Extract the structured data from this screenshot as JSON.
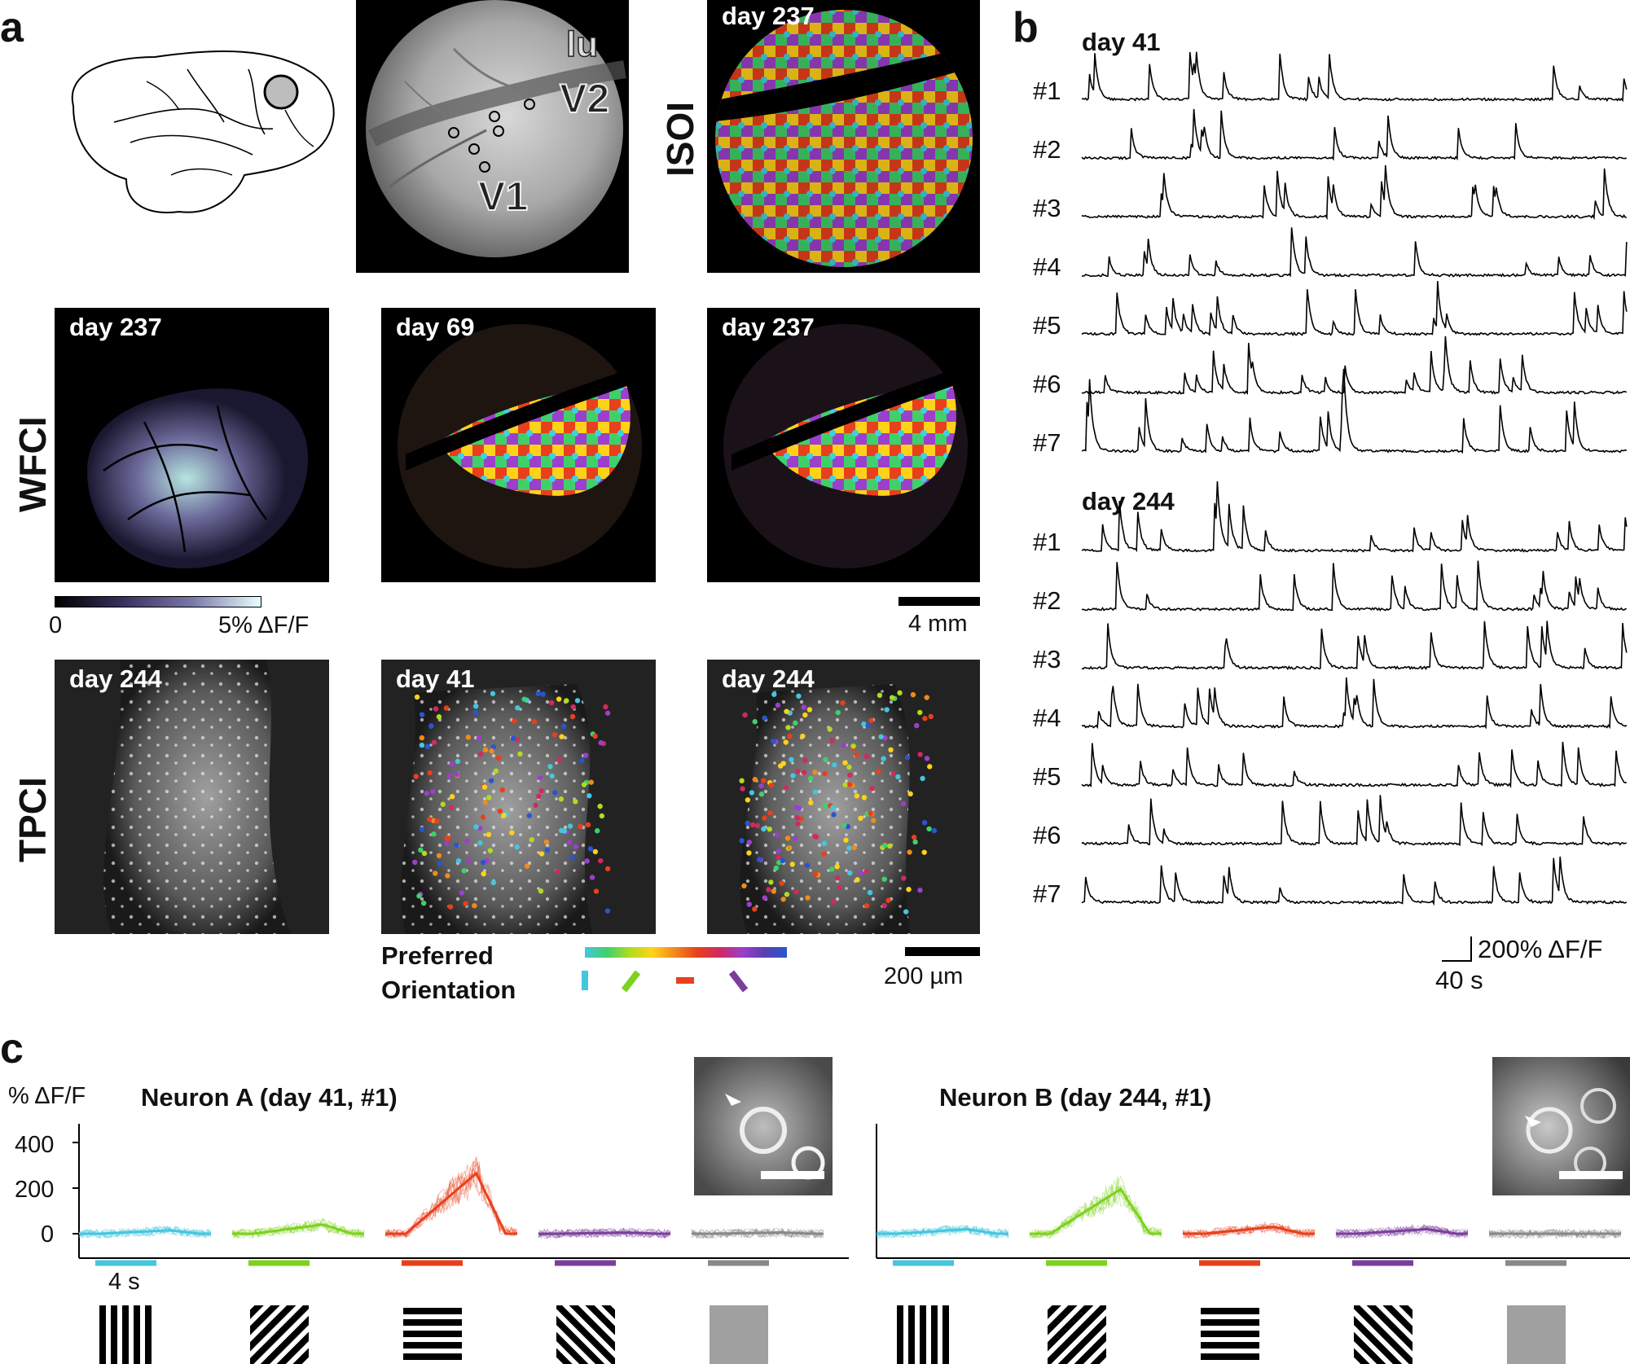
{
  "panels": {
    "a": "a",
    "b": "b",
    "c": "c"
  },
  "panel_a": {
    "window_labels": {
      "lu": "lu",
      "v2": "V2",
      "v1": "V1"
    },
    "row_labels": {
      "isoi": "ISOI",
      "wfci": "WFCI",
      "tpci": "TPCI"
    },
    "isoi_day": "day 237",
    "wfci_days": [
      "day 237",
      "day 69",
      "day 237"
    ],
    "tpci_days": [
      "day 244",
      "day 41",
      "day 244"
    ],
    "colorbar": {
      "min": "0",
      "max": "5% ΔF/F"
    },
    "scalebar_wfci": "4 mm",
    "scalebar_tpci": "200 µm",
    "orientation_label": [
      "Preferred",
      "Orientation"
    ],
    "colors": {
      "cyan": "#45c6dc",
      "green": "#7cd21e",
      "red": "#e8401c",
      "purple": "#7a3f9c",
      "gray": "#888888"
    }
  },
  "panel_b": {
    "day1": "day 41",
    "day2": "day 244",
    "neurons": [
      "#1",
      "#2",
      "#3",
      "#4",
      "#5",
      "#6",
      "#7"
    ],
    "scale_y": "200% ΔF/F",
    "scale_x": "40 s"
  },
  "panel_c": {
    "ylabel": "% ΔF/F",
    "yticks": [
      "400",
      "200",
      "0"
    ],
    "neuron_a_title": "Neuron A (day 41, #1)",
    "neuron_b_title": "Neuron B (day 244, #1)",
    "time_scale": "4 s",
    "chart_data": [
      {
        "type": "line",
        "title": "Neuron A (day 41, #1)",
        "ylabel": "% ΔF/F",
        "ylim": [
          -80,
          480
        ],
        "conditions": [
          "vertical",
          "diagonal-right",
          "horizontal",
          "diagonal-left",
          "blank"
        ],
        "peak_values": [
          15,
          40,
          265,
          5,
          5
        ]
      },
      {
        "type": "line",
        "title": "Neuron B (day 244, #1)",
        "ylabel": "% ΔF/F",
        "ylim": [
          -80,
          480
        ],
        "conditions": [
          "vertical",
          "diagonal-right",
          "horizontal",
          "diagonal-left",
          "blank"
        ],
        "peak_values": [
          20,
          195,
          30,
          20,
          0
        ]
      }
    ]
  }
}
